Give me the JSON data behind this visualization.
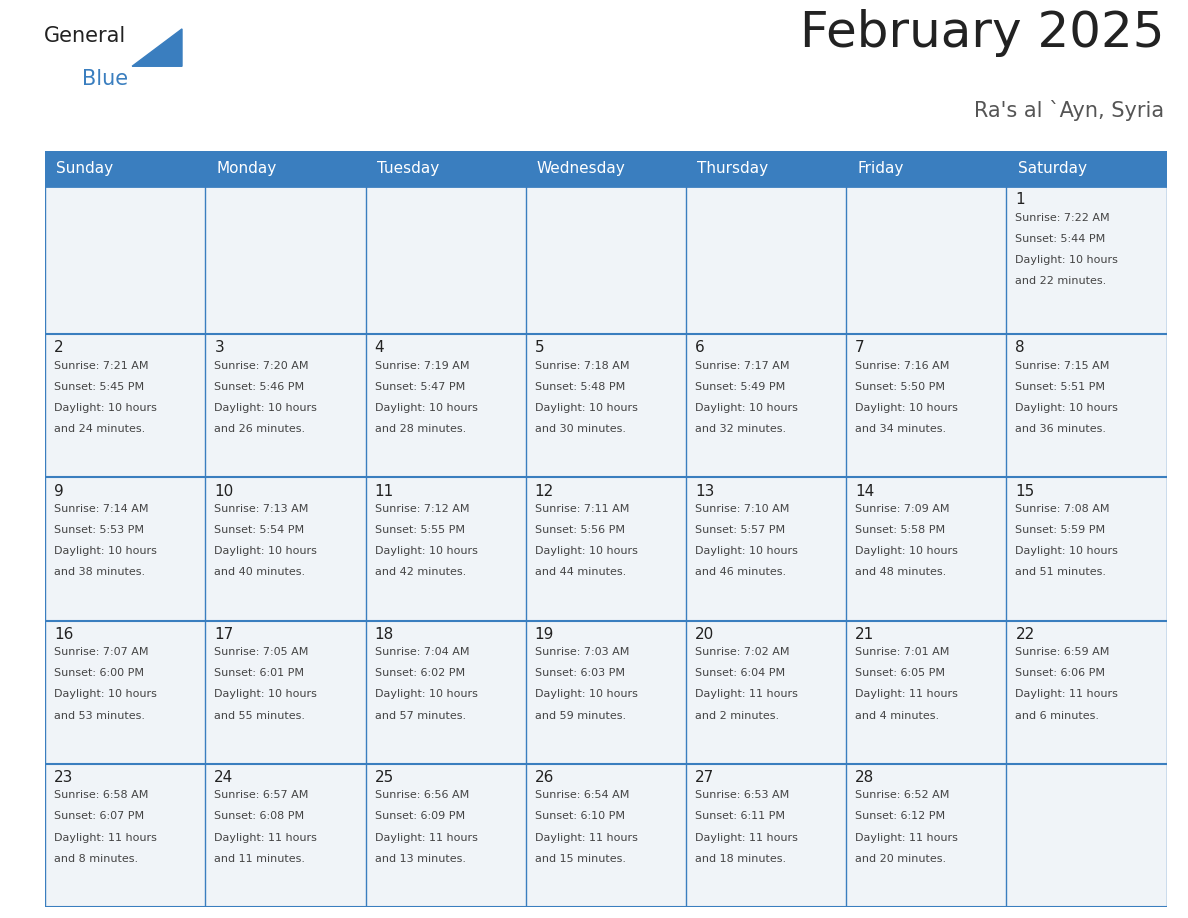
{
  "title": "February 2025",
  "subtitle": "Ra's al `Ayn, Syria",
  "header_bg": "#3a7ebf",
  "header_text_color": "#ffffff",
  "cell_bg": "#f0f4f8",
  "border_color": "#3a7ebf",
  "day_names": [
    "Sunday",
    "Monday",
    "Tuesday",
    "Wednesday",
    "Thursday",
    "Friday",
    "Saturday"
  ],
  "title_color": "#222222",
  "subtitle_color": "#555555",
  "day_number_color": "#222222",
  "info_color": "#444444",
  "days": [
    {
      "day": 1,
      "col": 6,
      "row": 0,
      "sunrise": "7:22 AM",
      "sunset": "5:44 PM",
      "daylight": "10 hours",
      "daylight2": "and 22 minutes."
    },
    {
      "day": 2,
      "col": 0,
      "row": 1,
      "sunrise": "7:21 AM",
      "sunset": "5:45 PM",
      "daylight": "10 hours",
      "daylight2": "and 24 minutes."
    },
    {
      "day": 3,
      "col": 1,
      "row": 1,
      "sunrise": "7:20 AM",
      "sunset": "5:46 PM",
      "daylight": "10 hours",
      "daylight2": "and 26 minutes."
    },
    {
      "day": 4,
      "col": 2,
      "row": 1,
      "sunrise": "7:19 AM",
      "sunset": "5:47 PM",
      "daylight": "10 hours",
      "daylight2": "and 28 minutes."
    },
    {
      "day": 5,
      "col": 3,
      "row": 1,
      "sunrise": "7:18 AM",
      "sunset": "5:48 PM",
      "daylight": "10 hours",
      "daylight2": "and 30 minutes."
    },
    {
      "day": 6,
      "col": 4,
      "row": 1,
      "sunrise": "7:17 AM",
      "sunset": "5:49 PM",
      "daylight": "10 hours",
      "daylight2": "and 32 minutes."
    },
    {
      "day": 7,
      "col": 5,
      "row": 1,
      "sunrise": "7:16 AM",
      "sunset": "5:50 PM",
      "daylight": "10 hours",
      "daylight2": "and 34 minutes."
    },
    {
      "day": 8,
      "col": 6,
      "row": 1,
      "sunrise": "7:15 AM",
      "sunset": "5:51 PM",
      "daylight": "10 hours",
      "daylight2": "and 36 minutes."
    },
    {
      "day": 9,
      "col": 0,
      "row": 2,
      "sunrise": "7:14 AM",
      "sunset": "5:53 PM",
      "daylight": "10 hours",
      "daylight2": "and 38 minutes."
    },
    {
      "day": 10,
      "col": 1,
      "row": 2,
      "sunrise": "7:13 AM",
      "sunset": "5:54 PM",
      "daylight": "10 hours",
      "daylight2": "and 40 minutes."
    },
    {
      "day": 11,
      "col": 2,
      "row": 2,
      "sunrise": "7:12 AM",
      "sunset": "5:55 PM",
      "daylight": "10 hours",
      "daylight2": "and 42 minutes."
    },
    {
      "day": 12,
      "col": 3,
      "row": 2,
      "sunrise": "7:11 AM",
      "sunset": "5:56 PM",
      "daylight": "10 hours",
      "daylight2": "and 44 minutes."
    },
    {
      "day": 13,
      "col": 4,
      "row": 2,
      "sunrise": "7:10 AM",
      "sunset": "5:57 PM",
      "daylight": "10 hours",
      "daylight2": "and 46 minutes."
    },
    {
      "day": 14,
      "col": 5,
      "row": 2,
      "sunrise": "7:09 AM",
      "sunset": "5:58 PM",
      "daylight": "10 hours",
      "daylight2": "and 48 minutes."
    },
    {
      "day": 15,
      "col": 6,
      "row": 2,
      "sunrise": "7:08 AM",
      "sunset": "5:59 PM",
      "daylight": "10 hours",
      "daylight2": "and 51 minutes."
    },
    {
      "day": 16,
      "col": 0,
      "row": 3,
      "sunrise": "7:07 AM",
      "sunset": "6:00 PM",
      "daylight": "10 hours",
      "daylight2": "and 53 minutes."
    },
    {
      "day": 17,
      "col": 1,
      "row": 3,
      "sunrise": "7:05 AM",
      "sunset": "6:01 PM",
      "daylight": "10 hours",
      "daylight2": "and 55 minutes."
    },
    {
      "day": 18,
      "col": 2,
      "row": 3,
      "sunrise": "7:04 AM",
      "sunset": "6:02 PM",
      "daylight": "10 hours",
      "daylight2": "and 57 minutes."
    },
    {
      "day": 19,
      "col": 3,
      "row": 3,
      "sunrise": "7:03 AM",
      "sunset": "6:03 PM",
      "daylight": "10 hours",
      "daylight2": "and 59 minutes."
    },
    {
      "day": 20,
      "col": 4,
      "row": 3,
      "sunrise": "7:02 AM",
      "sunset": "6:04 PM",
      "daylight": "11 hours",
      "daylight2": "and 2 minutes."
    },
    {
      "day": 21,
      "col": 5,
      "row": 3,
      "sunrise": "7:01 AM",
      "sunset": "6:05 PM",
      "daylight": "11 hours",
      "daylight2": "and 4 minutes."
    },
    {
      "day": 22,
      "col": 6,
      "row": 3,
      "sunrise": "6:59 AM",
      "sunset": "6:06 PM",
      "daylight": "11 hours",
      "daylight2": "and 6 minutes."
    },
    {
      "day": 23,
      "col": 0,
      "row": 4,
      "sunrise": "6:58 AM",
      "sunset": "6:07 PM",
      "daylight": "11 hours",
      "daylight2": "and 8 minutes."
    },
    {
      "day": 24,
      "col": 1,
      "row": 4,
      "sunrise": "6:57 AM",
      "sunset": "6:08 PM",
      "daylight": "11 hours",
      "daylight2": "and 11 minutes."
    },
    {
      "day": 25,
      "col": 2,
      "row": 4,
      "sunrise": "6:56 AM",
      "sunset": "6:09 PM",
      "daylight": "11 hours",
      "daylight2": "and 13 minutes."
    },
    {
      "day": 26,
      "col": 3,
      "row": 4,
      "sunrise": "6:54 AM",
      "sunset": "6:10 PM",
      "daylight": "11 hours",
      "daylight2": "and 15 minutes."
    },
    {
      "day": 27,
      "col": 4,
      "row": 4,
      "sunrise": "6:53 AM",
      "sunset": "6:11 PM",
      "daylight": "11 hours",
      "daylight2": "and 18 minutes."
    },
    {
      "day": 28,
      "col": 5,
      "row": 4,
      "sunrise": "6:52 AM",
      "sunset": "6:12 PM",
      "daylight": "11 hours",
      "daylight2": "and 20 minutes."
    }
  ],
  "logo_general_color": "#222222",
  "logo_blue_color": "#3a7ebf",
  "fig_width": 11.88,
  "fig_height": 9.18,
  "num_rows": 5,
  "num_cols": 7
}
